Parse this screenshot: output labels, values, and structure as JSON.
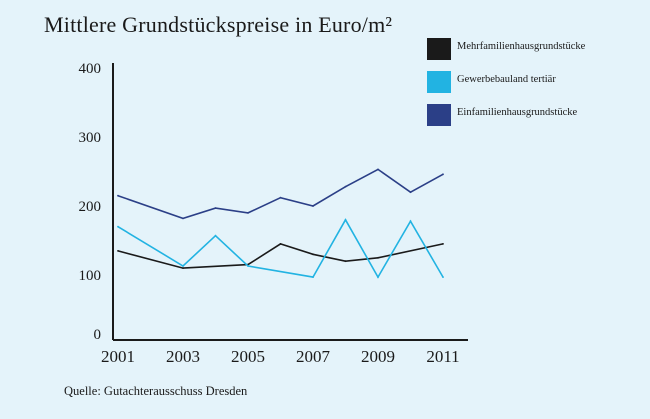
{
  "chart_data": {
    "type": "line",
    "title": "Mittlere Grundstückspreise in Euro/m²",
    "xlabel": "",
    "ylabel": "",
    "x_tick_labels": [
      "2001",
      "2003",
      "2005",
      "2007",
      "2009",
      "2011"
    ],
    "y_tick_labels": [
      "0",
      "100",
      "200",
      "300",
      "400"
    ],
    "xlim": [
      2001,
      2011
    ],
    "ylim": [
      0,
      400
    ],
    "grid": false,
    "legend_position": "top-right",
    "source": "Quelle: Gutachterausschuss Dresden",
    "series": [
      {
        "name": "Mehrfamilienhausgrundstücke",
        "color": "#1a1a1a",
        "x": [
          2001,
          2003,
          2005,
          2006,
          2007,
          2008,
          2009,
          2011
        ],
        "values": [
          135,
          110,
          115,
          145,
          130,
          120,
          125,
          145
        ]
      },
      {
        "name": "Gewerbebauland tertiär",
        "color": "#22b3e2",
        "x": [
          2001,
          2003,
          2004,
          2005,
          2007,
          2008,
          2009,
          2010,
          2011
        ],
        "values": [
          170,
          113,
          157,
          113,
          97,
          180,
          97,
          178,
          97
        ]
      },
      {
        "name": "Einfamilienhausgrundstücke",
        "color": "#2b3f87",
        "x": [
          2001,
          2003,
          2004,
          2005,
          2006,
          2007,
          2008,
          2009,
          2010,
          2011
        ],
        "values": [
          215,
          182,
          197,
          190,
          212,
          200,
          228,
          253,
          220,
          246
        ]
      }
    ]
  }
}
